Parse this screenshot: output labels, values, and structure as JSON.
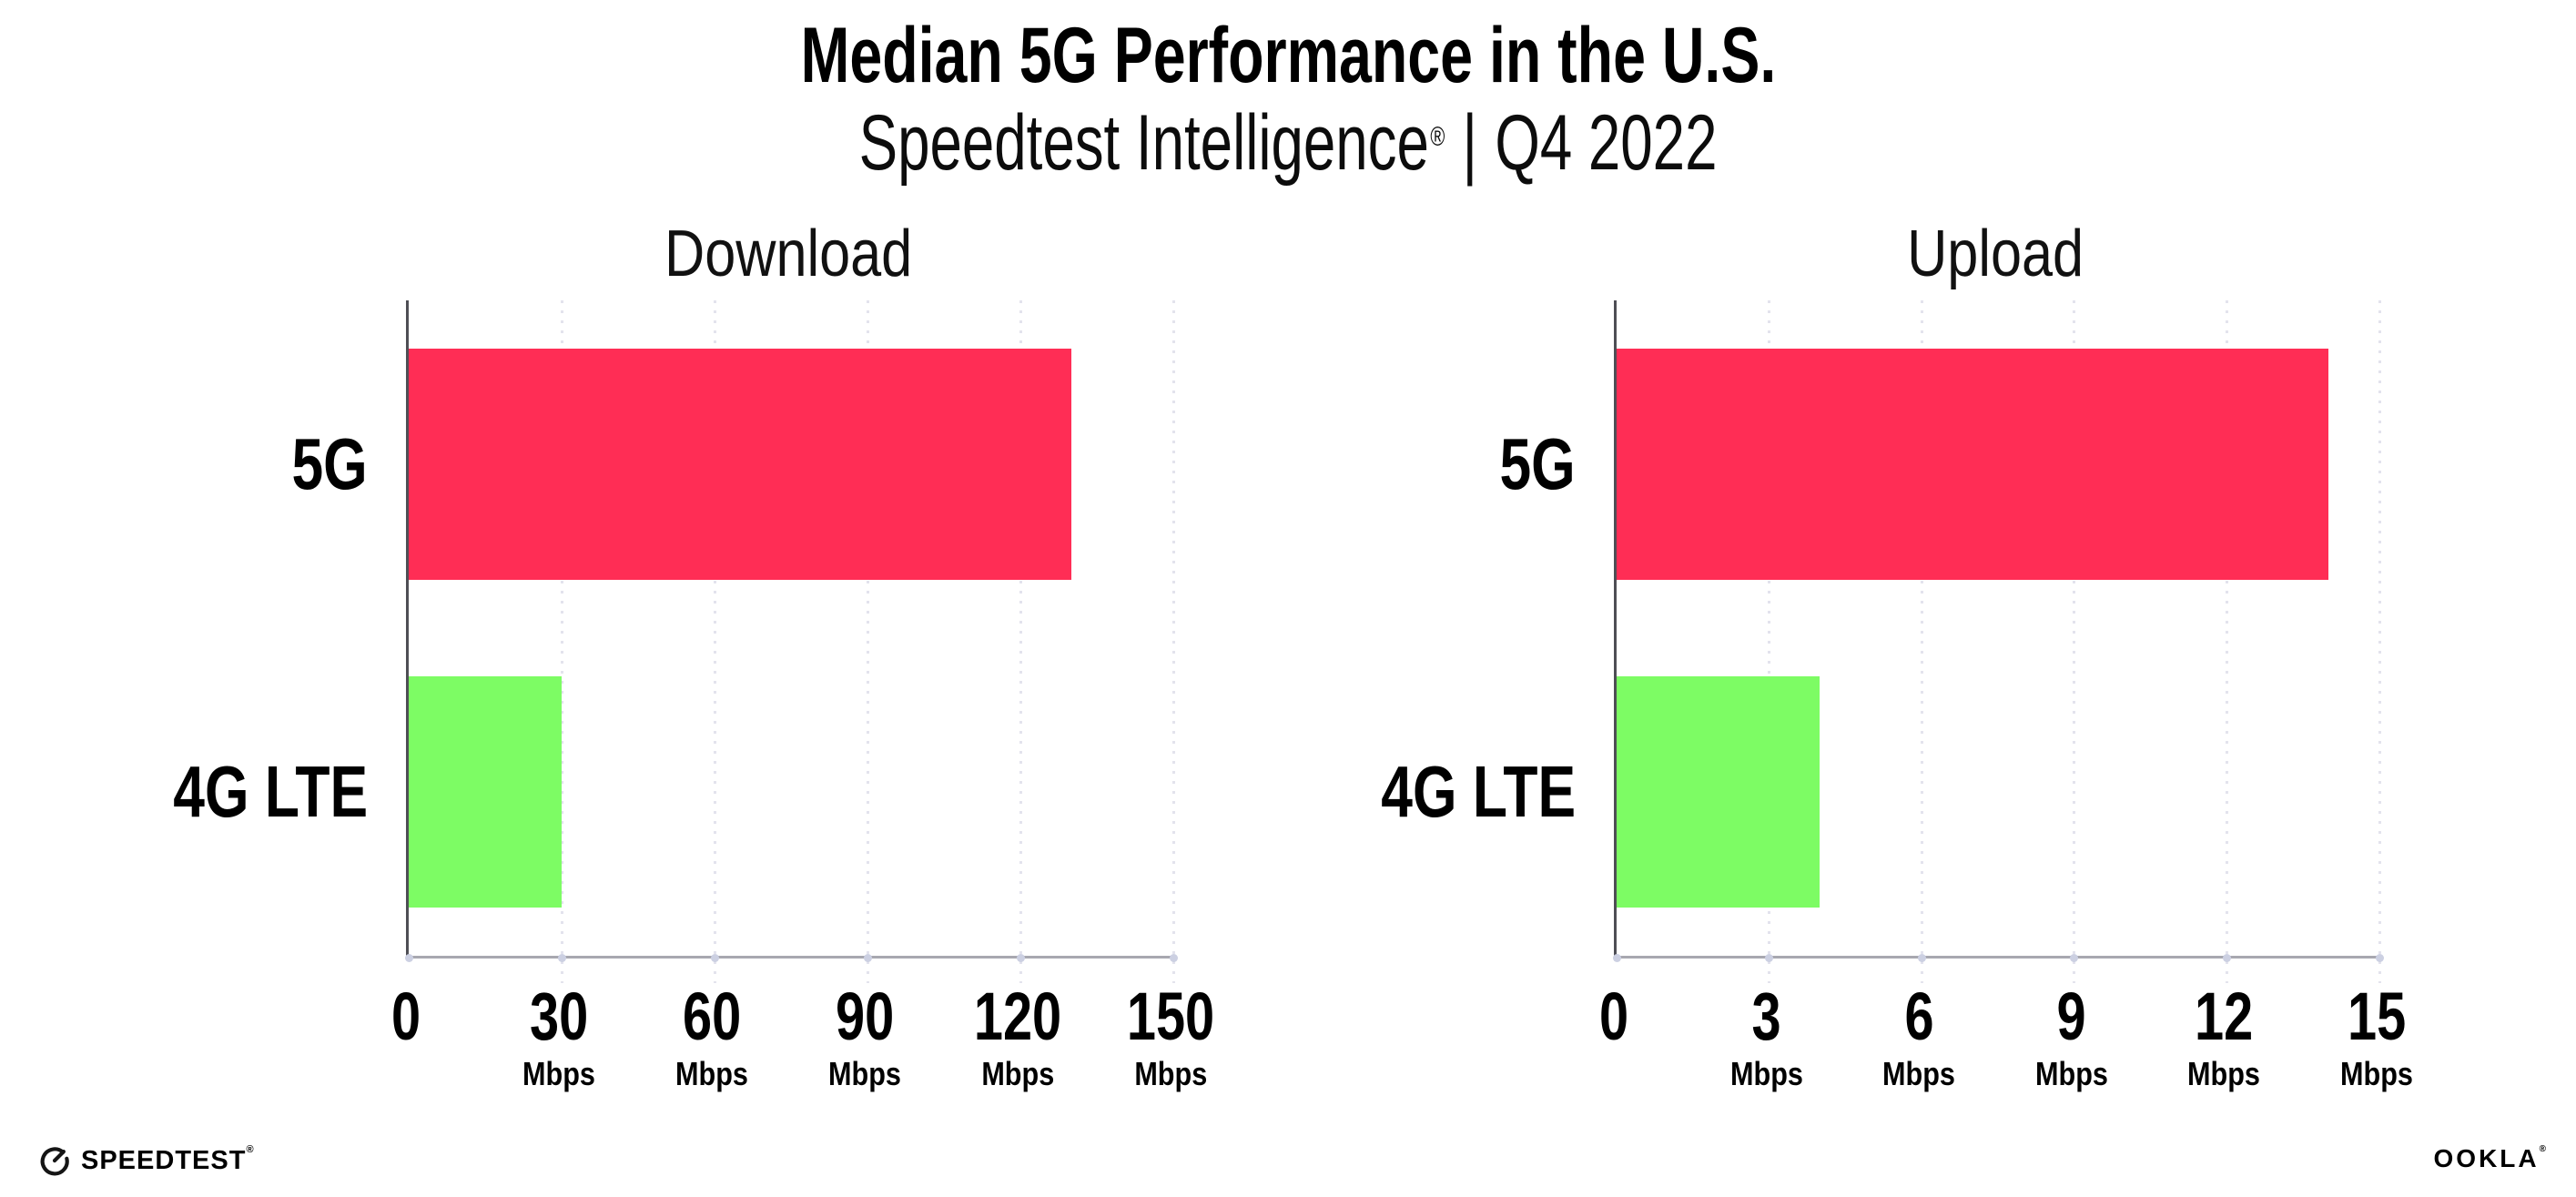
{
  "header": {
    "title": "Median 5G Performance in the U.S.",
    "subtitle": {
      "brand": "Speedtest Intelligence",
      "registered": "®",
      "separator": "|",
      "period": "Q4 2022"
    }
  },
  "colors": {
    "bar_5g": "#ff2d55",
    "bar_4g_lte": "#7dfc64",
    "gridline": "#e3e3ed",
    "x_axis_line": "#a8a8b0",
    "y_axis_line": "#4e4e55",
    "text": "#000000"
  },
  "chart_data": [
    {
      "type": "bar",
      "orientation": "horizontal",
      "title": "Download",
      "categories": [
        "5G",
        "4G LTE"
      ],
      "values": [
        130,
        30
      ],
      "unit": "Mbps",
      "xlim": [
        0,
        150
      ],
      "xticks": [
        0,
        30,
        60,
        90,
        120,
        150
      ],
      "grid": "vertical-dotted",
      "legend": "none",
      "series_colors": [
        "#ff2d55",
        "#7dfc64"
      ]
    },
    {
      "type": "bar",
      "orientation": "horizontal",
      "title": "Upload",
      "categories": [
        "5G",
        "4G LTE"
      ],
      "values": [
        14,
        4
      ],
      "unit": "Mbps",
      "xlim": [
        0,
        15
      ],
      "xticks": [
        0,
        3,
        6,
        9,
        12,
        15
      ],
      "grid": "vertical-dotted",
      "legend": "none",
      "series_colors": [
        "#ff2d55",
        "#7dfc64"
      ]
    }
  ],
  "footer": {
    "speedtest": {
      "label": "SPEEDTEST",
      "registered": "®"
    },
    "ookla": {
      "label": "OOKLA",
      "registered": "®"
    }
  }
}
